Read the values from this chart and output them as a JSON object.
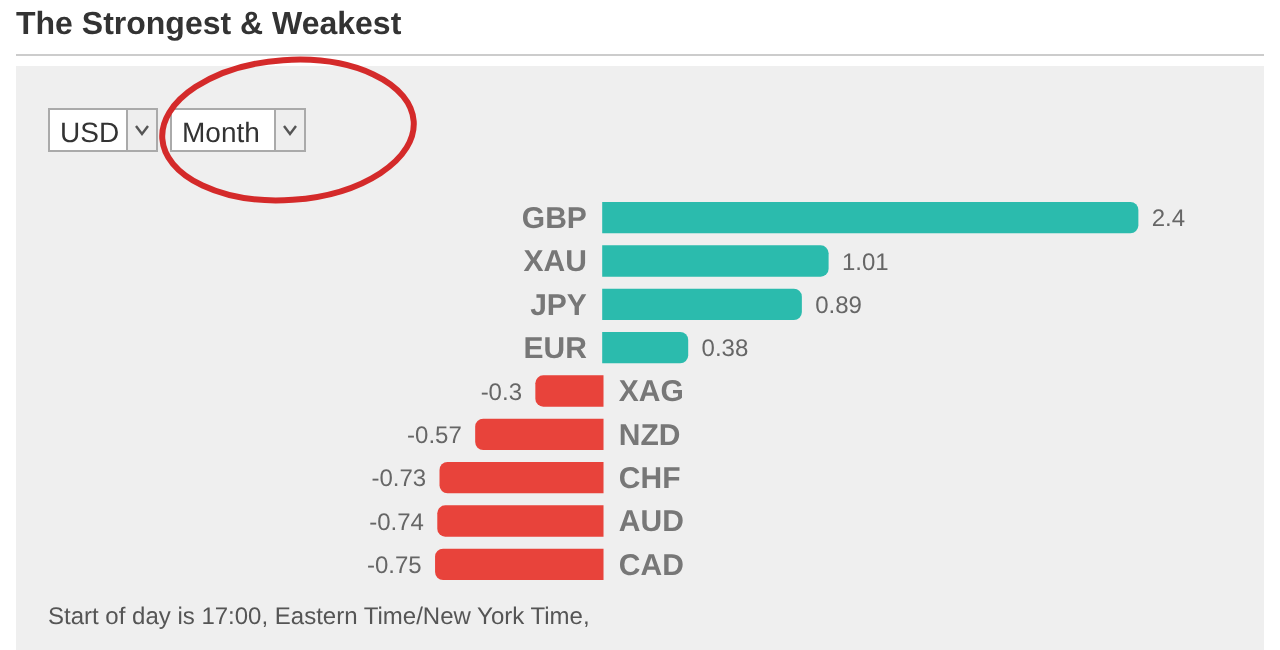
{
  "chart_data": {
    "type": "bar",
    "orientation": "horizontal",
    "title": "The Strongest & Weakest",
    "categories": [
      "GBP",
      "XAU",
      "JPY",
      "EUR",
      "XAG",
      "NZD",
      "CHF",
      "AUD",
      "CAD"
    ],
    "values": [
      2.4,
      1.01,
      0.89,
      0.38,
      -0.3,
      -0.57,
      -0.73,
      -0.74,
      -0.75
    ],
    "colors": [
      "#2bbbad",
      "#2bbbad",
      "#2bbbad",
      "#2bbbad",
      "#e8433b",
      "#e8433b",
      "#e8433b",
      "#e8433b",
      "#e8433b"
    ],
    "tick_labels": "y",
    "data_labels": true,
    "annotations": [
      "Start of day is 17:00, Eastern Time/New York Time,",
      "USD",
      "Month"
    ]
  }
}
